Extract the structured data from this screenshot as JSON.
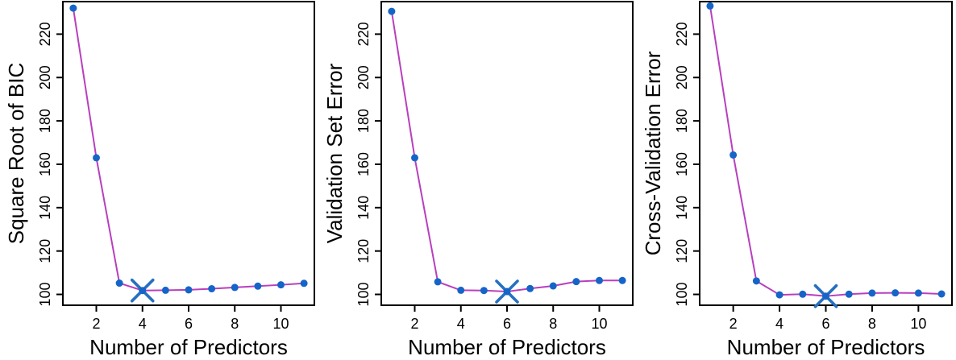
{
  "figure": {
    "background_color": "#ffffff",
    "description_labels": {
      "best_model_marker": "X"
    }
  },
  "style": {
    "line_color": "#B83FBE",
    "point_color": "#1565C8",
    "marker_color": "#2570C0",
    "axis_color": "#000000"
  },
  "chart_data": [
    {
      "type": "line",
      "title": "",
      "xlabel": "Number of Predictors",
      "ylabel": "Square Root of BIC",
      "x": [
        1,
        2,
        3,
        4,
        5,
        6,
        7,
        8,
        9,
        10,
        11
      ],
      "values": [
        232,
        163,
        105.2,
        101.8,
        101.9,
        102.1,
        102.6,
        103.2,
        103.8,
        104.4,
        105.1
      ],
      "best_x": 4,
      "best_marker": "X",
      "xticks": [
        2,
        4,
        6,
        8,
        10
      ],
      "yticks": [
        100,
        120,
        140,
        160,
        180,
        200,
        220
      ],
      "xlim": [
        0.55,
        11.45
      ],
      "ylim": [
        95,
        235
      ],
      "grid": false,
      "legend": "none"
    },
    {
      "type": "line",
      "title": "",
      "xlabel": "Number of Predictors",
      "ylabel": "Validation Set Error",
      "x": [
        1,
        2,
        3,
        4,
        5,
        6,
        7,
        8,
        9,
        10,
        11
      ],
      "values": [
        230.5,
        163,
        105.8,
        101.9,
        101.8,
        101.3,
        102.7,
        103.9,
        105.9,
        106.4,
        106.4
      ],
      "best_x": 6,
      "best_marker": "X",
      "xticks": [
        2,
        4,
        6,
        8,
        10
      ],
      "yticks": [
        100,
        120,
        140,
        160,
        180,
        200,
        220
      ],
      "xlim": [
        0.55,
        11.45
      ],
      "ylim": [
        95,
        235
      ],
      "grid": false,
      "legend": "none"
    },
    {
      "type": "line",
      "title": "",
      "xlabel": "Number of Predictors",
      "ylabel": "Cross-Validation Error",
      "x": [
        1,
        2,
        3,
        4,
        5,
        6,
        7,
        8,
        9,
        10,
        11
      ],
      "values": [
        233,
        164.3,
        106.2,
        99.8,
        100.1,
        99.2,
        100.1,
        100.6,
        100.7,
        100.6,
        100.2
      ],
      "best_x": 6,
      "best_marker": "X",
      "xticks": [
        2,
        4,
        6,
        8,
        10
      ],
      "yticks": [
        100,
        120,
        140,
        160,
        180,
        200,
        220
      ],
      "xlim": [
        0.55,
        11.45
      ],
      "ylim": [
        95,
        235
      ],
      "grid": false,
      "legend": "none"
    }
  ]
}
